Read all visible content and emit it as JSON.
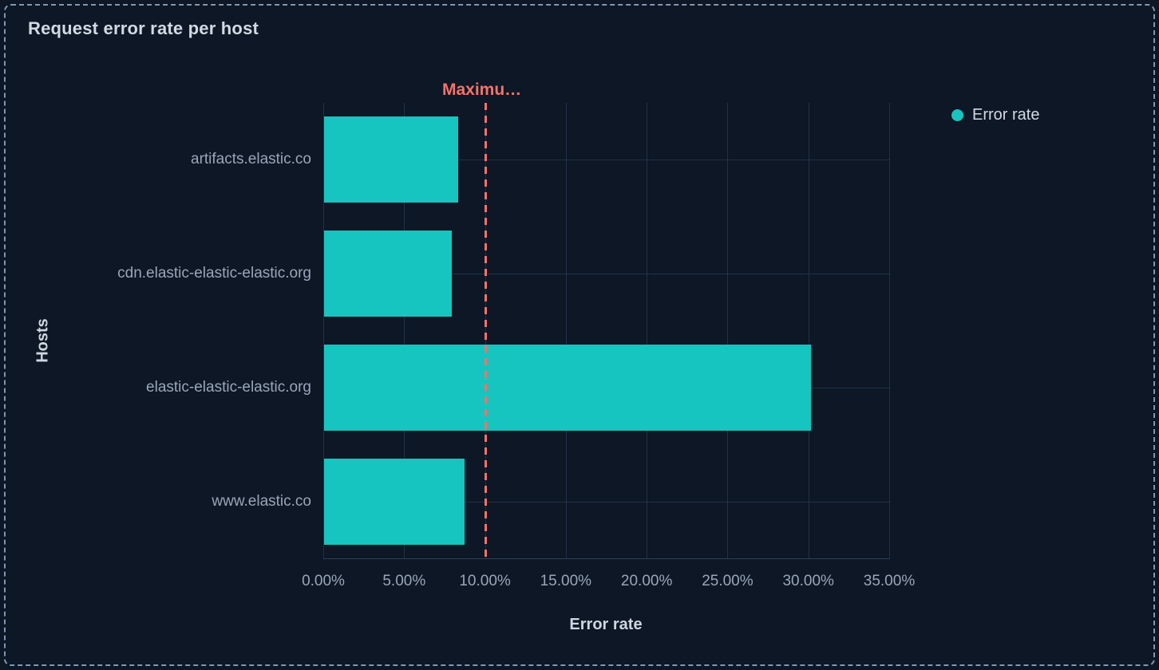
{
  "panel": {
    "title": "Request error rate per host"
  },
  "legend": {
    "position": "right",
    "items": [
      {
        "label": "Error rate",
        "color": "#16c5c0"
      }
    ]
  },
  "chart_data": {
    "type": "bar",
    "orientation": "horizontal",
    "title": "Request error rate per host",
    "categories": [
      "artifacts.elastic.co",
      "cdn.elastic-elastic-elastic.org",
      "elastic-elastic-elastic.org",
      "www.elastic.co"
    ],
    "series": [
      {
        "name": "Error rate",
        "color": "#16c5c0",
        "values": [
          8.3,
          7.9,
          30.1,
          8.7
        ]
      }
    ],
    "xlabel": "Error rate",
    "ylabel": "Hosts",
    "xlim": [
      0,
      35
    ],
    "x_tick_values": [
      0,
      5,
      10,
      15,
      20,
      25,
      30,
      35
    ],
    "x_tick_labels": [
      "0.00%",
      "5.00%",
      "10.00%",
      "15.00%",
      "20.00%",
      "25.00%",
      "30.00%",
      "35.00%"
    ],
    "grid": true,
    "threshold": {
      "label": "Maximu…",
      "value": 10,
      "color": "#f6726a",
      "style": "dashed"
    },
    "legend_position": "right"
  },
  "colors": {
    "background": "#0d1725",
    "panel_border": "#8196b3",
    "bar": "#16c5c0",
    "threshold": "#f6726a",
    "gridline": "#22314a",
    "axis_line": "#2e3f5c",
    "title_text": "#d2d9e4",
    "tick_text": "#9aa5b8"
  }
}
